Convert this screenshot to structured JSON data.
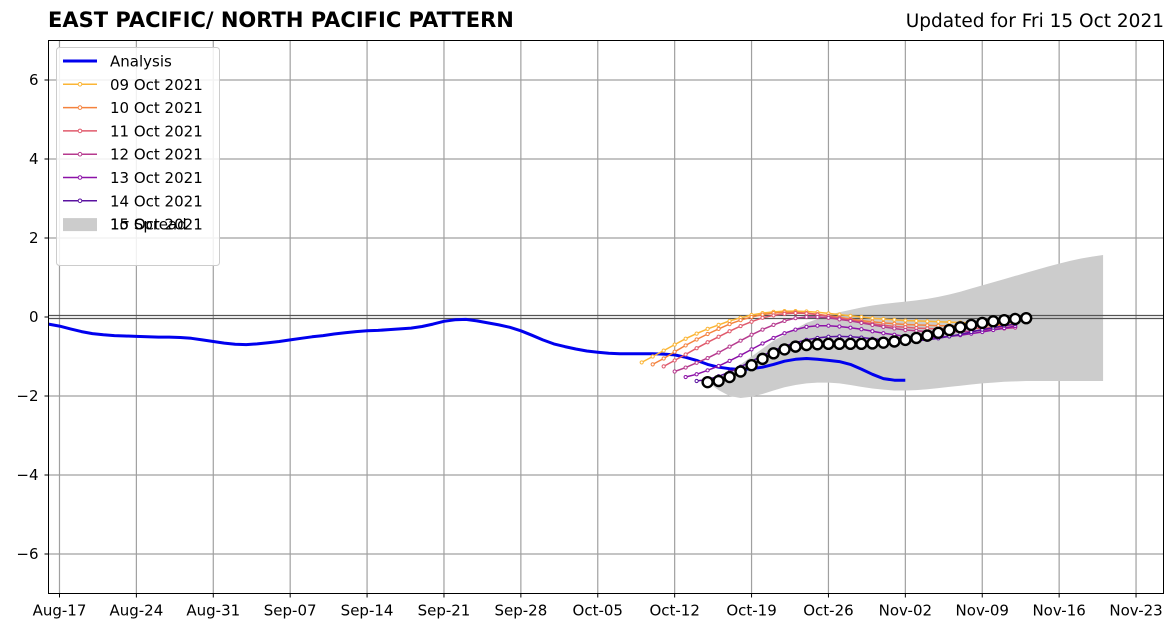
{
  "header": {
    "title": "EAST PACIFIC/ NORTH PACIFIC PATTERN",
    "updated": "Updated for Fri 15 Oct 2021"
  },
  "chart_data": {
    "type": "line",
    "title": "EAST PACIFIC/ NORTH PACIFIC PATTERN",
    "subtitle": "Updated for Fri 15 Oct 2021",
    "xlabel": "",
    "ylabel": "",
    "x_ticks": [
      "Aug-17",
      "Aug-24",
      "Aug-31",
      "Sep-07",
      "Sep-14",
      "Sep-21",
      "Sep-28",
      "Oct-05",
      "Oct-12",
      "Oct-19",
      "Oct-26",
      "Nov-02",
      "Nov-09",
      "Nov-16",
      "Nov-23"
    ],
    "x_tick_positions": [
      0,
      7,
      14,
      21,
      28,
      35,
      42,
      49,
      56,
      63,
      70,
      77,
      84,
      91,
      98
    ],
    "y_ticks": [
      "−6",
      "−4",
      "−2",
      "0",
      "2",
      "4",
      "6"
    ],
    "y_tick_values": [
      -6,
      -4,
      -2,
      0,
      2,
      4,
      6
    ],
    "xlim": [
      -1,
      100.5
    ],
    "ylim": [
      -7,
      7
    ],
    "grid": true,
    "legend_position": "top-left",
    "analysis": {
      "name": "Analysis",
      "color": "#0000ee",
      "start_x": -1,
      "step": 1,
      "values": [
        -0.18,
        -0.23,
        -0.3,
        -0.37,
        -0.42,
        -0.45,
        -0.47,
        -0.48,
        -0.49,
        -0.5,
        -0.51,
        -0.51,
        -0.52,
        -0.54,
        -0.58,
        -0.62,
        -0.66,
        -0.69,
        -0.7,
        -0.68,
        -0.65,
        -0.62,
        -0.58,
        -0.54,
        -0.5,
        -0.47,
        -0.43,
        -0.4,
        -0.37,
        -0.35,
        -0.34,
        -0.32,
        -0.3,
        -0.28,
        -0.24,
        -0.18,
        -0.11,
        -0.07,
        -0.06,
        -0.1,
        -0.15,
        -0.2,
        -0.26,
        -0.35,
        -0.46,
        -0.58,
        -0.68,
        -0.75,
        -0.81,
        -0.86,
        -0.89,
        -0.92,
        -0.93,
        -0.93,
        -0.93,
        -0.93,
        -0.94,
        -0.96,
        -1.02,
        -1.1,
        -1.2,
        -1.27,
        -1.31,
        -1.33,
        -1.31,
        -1.27,
        -1.2,
        -1.12,
        -1.07,
        -1.05,
        -1.07,
        -1.1,
        -1.13,
        -1.2,
        -1.32,
        -1.45,
        -1.56,
        -1.6,
        -1.6
      ]
    },
    "spread": {
      "name": "1σ Spread",
      "color": "#cccccc",
      "start_x": 59,
      "step": 1,
      "upper": [
        -1.6,
        -1.55,
        -1.4,
        -1.2,
        -1.0,
        -0.8,
        -0.6,
        -0.45,
        -0.3,
        -0.15,
        -0.05,
        0.05,
        0.12,
        0.18,
        0.24,
        0.29,
        0.33,
        0.36,
        0.39,
        0.42,
        0.46,
        0.51,
        0.57,
        0.64,
        0.72,
        0.8,
        0.88,
        0.96,
        1.04,
        1.12,
        1.2,
        1.28,
        1.35,
        1.42,
        1.48,
        1.53,
        1.57
      ],
      "lower": [
        -1.65,
        -1.85,
        -2.0,
        -2.05,
        -2.02,
        -1.95,
        -1.86,
        -1.78,
        -1.72,
        -1.68,
        -1.66,
        -1.66,
        -1.68,
        -1.72,
        -1.77,
        -1.81,
        -1.84,
        -1.86,
        -1.86,
        -1.85,
        -1.83,
        -1.8,
        -1.77,
        -1.74,
        -1.71,
        -1.68,
        -1.66,
        -1.64,
        -1.63,
        -1.62,
        -1.62,
        -1.62,
        -1.62,
        -1.62,
        -1.62,
        -1.62,
        -1.62
      ]
    },
    "forecasts": [
      {
        "name": "09 Oct 2021",
        "color": "#fbb535",
        "start_x": 53,
        "values": [
          -1.15,
          -1.0,
          -0.85,
          -0.7,
          -0.55,
          -0.42,
          -0.3,
          -0.2,
          -0.1,
          -0.02,
          0.05,
          0.1,
          0.13,
          0.15,
          0.15,
          0.14,
          0.12,
          0.09,
          0.06,
          0.03,
          0.0,
          -0.03,
          -0.05,
          -0.07,
          -0.09,
          -0.1,
          -0.11,
          -0.12,
          -0.13,
          -0.14,
          -0.15,
          -0.16,
          -0.17,
          -0.18,
          -0.19
        ]
      },
      {
        "name": "10 Oct 2021",
        "color": "#f4823e",
        "start_x": 54,
        "values": [
          -1.2,
          -1.05,
          -0.88,
          -0.72,
          -0.57,
          -0.43,
          -0.3,
          -0.18,
          -0.08,
          0.0,
          0.06,
          0.1,
          0.12,
          0.12,
          0.1,
          0.07,
          0.03,
          -0.01,
          -0.05,
          -0.09,
          -0.12,
          -0.15,
          -0.17,
          -0.19,
          -0.2,
          -0.21,
          -0.22,
          -0.22,
          -0.22,
          -0.22,
          -0.22,
          -0.21,
          -0.21,
          -0.2
        ]
      },
      {
        "name": "11 Oct 2021",
        "color": "#e05a6c",
        "start_x": 55,
        "values": [
          -1.25,
          -1.1,
          -0.95,
          -0.79,
          -0.64,
          -0.5,
          -0.36,
          -0.23,
          -0.12,
          -0.02,
          0.04,
          0.08,
          0.1,
          0.09,
          0.06,
          0.02,
          -0.03,
          -0.08,
          -0.13,
          -0.17,
          -0.21,
          -0.24,
          -0.26,
          -0.28,
          -0.29,
          -0.3,
          -0.3,
          -0.3,
          -0.29,
          -0.28,
          -0.27,
          -0.26,
          -0.25
        ]
      },
      {
        "name": "12 Oct 2021",
        "color": "#b63a8e",
        "start_x": 56,
        "values": [
          -1.38,
          -1.28,
          -1.16,
          -1.04,
          -0.9,
          -0.75,
          -0.6,
          -0.45,
          -0.32,
          -0.2,
          -0.1,
          -0.03,
          0.0,
          0.0,
          -0.02,
          -0.06,
          -0.1,
          -0.15,
          -0.2,
          -0.25,
          -0.29,
          -0.33,
          -0.35,
          -0.37,
          -0.38,
          -0.38,
          -0.37,
          -0.36,
          -0.34,
          -0.32,
          -0.29,
          -0.27
        ]
      },
      {
        "name": "13 Oct 2021",
        "color": "#8c12a8",
        "start_x": 57,
        "values": [
          -1.52,
          -1.45,
          -1.35,
          -1.24,
          -1.11,
          -0.97,
          -0.82,
          -0.67,
          -0.53,
          -0.41,
          -0.32,
          -0.25,
          -0.22,
          -0.22,
          -0.24,
          -0.27,
          -0.31,
          -0.36,
          -0.41,
          -0.45,
          -0.49,
          -0.51,
          -0.52,
          -0.51,
          -0.49,
          -0.46,
          -0.42,
          -0.38,
          -0.33,
          -0.28,
          -0.23
        ]
      },
      {
        "name": "14 Oct 2021",
        "color": "#5a12a0",
        "start_x": 58,
        "values": [
          -1.62,
          -1.58,
          -1.5,
          -1.39,
          -1.26,
          -1.12,
          -0.98,
          -0.85,
          -0.74,
          -0.65,
          -0.58,
          -0.53,
          -0.5,
          -0.49,
          -0.5,
          -0.52,
          -0.55,
          -0.58,
          -0.6,
          -0.61,
          -0.6,
          -0.58,
          -0.54,
          -0.49,
          -0.44,
          -0.38,
          -0.32,
          -0.27,
          -0.22,
          -0.18
        ]
      },
      {
        "name": "15 Oct 2021",
        "color": "#000000",
        "start_x": 59,
        "values": [
          -1.65,
          -1.62,
          -1.52,
          -1.38,
          -1.22,
          -1.06,
          -0.92,
          -0.82,
          -0.75,
          -0.71,
          -0.69,
          -0.68,
          -0.68,
          -0.68,
          -0.68,
          -0.67,
          -0.65,
          -0.62,
          -0.58,
          -0.53,
          -0.47,
          -0.4,
          -0.33,
          -0.26,
          -0.2,
          -0.15,
          -0.11,
          -0.08,
          -0.05,
          -0.03
        ]
      }
    ]
  }
}
